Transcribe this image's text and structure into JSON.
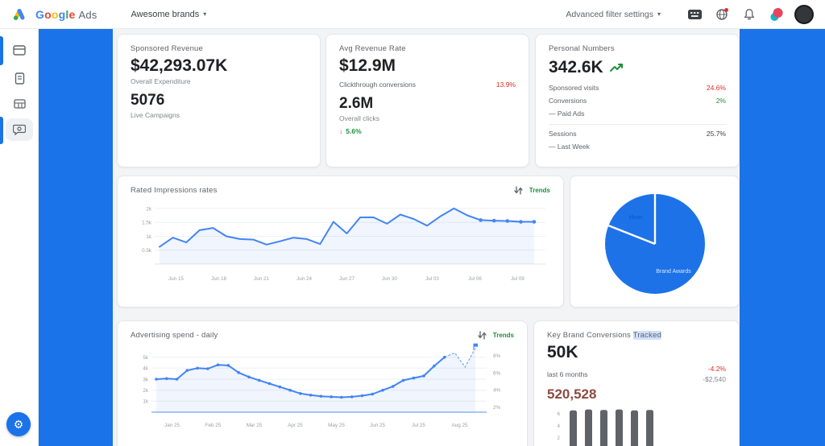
{
  "topbar": {
    "logo": {
      "word": "Google",
      "suffix": "Ads",
      "letter_colors": [
        "#4285f4",
        "#ea4335",
        "#fbbc05",
        "#4285f4",
        "#34a853",
        "#ea4335"
      ]
    },
    "account_label": "Awesome brands",
    "filter_label": "Advanced filter settings",
    "caret": "▾"
  },
  "colors": {
    "accent": "#1a73e8",
    "line": "#4285f4",
    "red": "#d93025",
    "green": "#1e8e3e",
    "maroon": "#8d4a3f",
    "bar_gray": "#5f6368",
    "pie_blue": "#1e72e8"
  },
  "cards": {
    "sponsored": {
      "title": "Sponsored Revenue",
      "value": "$42,293.07K",
      "label1": "Overall Expenditure",
      "value2": "5076",
      "label2": "Live Campaigns"
    },
    "revenue": {
      "title": "Avg Revenue Rate",
      "value": "$12.9M",
      "row1_label": "Clickthrough conversions",
      "row1_delta": "13.9%",
      "value2": "2.6M",
      "label2": "Overall clicks",
      "delta_down": "↓",
      "delta_up": "5.6%"
    },
    "audience": {
      "title": "Personal Numbers",
      "value": "342.6K",
      "rows": [
        {
          "label": "Sponsored visits",
          "value": "24.6%"
        },
        {
          "label": "Conversions",
          "value": "2%"
        },
        {
          "label": "— Paid Ads",
          "value": ""
        }
      ],
      "sessions_label": "Sessions",
      "sessions_value": "25.7%",
      "footnote": "— Last Week"
    },
    "impressions": {
      "trend_label": "Trends"
    },
    "spend": {
      "trend_label": "Trends"
    },
    "conversions": {
      "title_a": "Key Brand Conversions ",
      "title_b": "Tracked",
      "value": "50K",
      "sub": "last 6 months",
      "delta": "-4.2%",
      "delta2": "-$2,540",
      "secondary_value": "520,528"
    }
  },
  "chart_data": [
    {
      "id": "impressions",
      "type": "line",
      "title": "Rated Impressions rates",
      "x": [
        "Jun 15",
        "Jun 18",
        "Jun 21",
        "Jun 24",
        "Jun 27",
        "Jun 30",
        "Jul 03",
        "Jul 06",
        "Jul 09"
      ],
      "values": [
        0.62,
        0.95,
        0.78,
        1.22,
        1.3,
        1.0,
        0.9,
        0.88,
        0.7,
        0.82,
        0.95,
        0.9,
        0.72,
        1.52,
        1.1,
        1.68,
        1.68,
        1.45,
        1.78,
        1.62,
        1.38,
        1.72,
        2.0,
        1.75,
        1.58,
        1.56,
        1.55,
        1.52,
        1.52
      ],
      "ylim": [
        0,
        2.2
      ],
      "yticks": [
        {
          "v": 2,
          "label": "2k"
        },
        {
          "v": 1.5,
          "label": "1.5k"
        },
        {
          "v": 1,
          "label": "1k"
        },
        {
          "v": 0.5,
          "label": "0.5k"
        }
      ],
      "marker_from": 24,
      "legend": "none",
      "grid": true
    },
    {
      "id": "share",
      "type": "pie",
      "title": "",
      "slices": [
        {
          "label": "Brand Awards",
          "value": 81
        },
        {
          "label": "Ideas",
          "value": 19
        }
      ]
    },
    {
      "id": "spend",
      "type": "line",
      "title": "Advertising spend - daily",
      "x": [
        "Jan 25",
        "Feb 25",
        "Mar 25",
        "Apr 25",
        "May 25",
        "Jun 25",
        "Jul 25",
        "Aug 25"
      ],
      "values": [
        3.0,
        3.05,
        3.0,
        3.8,
        4.0,
        3.95,
        4.3,
        4.25,
        3.6,
        3.2,
        2.9,
        2.6,
        2.3,
        2.0,
        1.7,
        1.55,
        1.45,
        1.4,
        1.35,
        1.4,
        1.5,
        1.65,
        2.0,
        2.35,
        2.9,
        3.1,
        3.3,
        4.2,
        5.0,
        5.4,
        4.1,
        5.8
      ],
      "ylim": [
        0,
        6
      ],
      "yticks": [
        {
          "v": 5,
          "label": "5k"
        },
        {
          "v": 4,
          "label": "4k"
        },
        {
          "v": 3,
          "label": "3k"
        },
        {
          "v": 2,
          "label": "2k"
        },
        {
          "v": 1,
          "label": "1k"
        }
      ],
      "right_labels": [
        "8%",
        "6%",
        "4%",
        "2%"
      ],
      "dash_from": 28,
      "dot_all": true,
      "grid": true
    },
    {
      "id": "conversions_bars",
      "type": "bar",
      "title": "",
      "values": [
        6.2,
        6.4,
        6.3,
        6.4,
        6.2,
        6.3
      ],
      "yticks": [
        "6",
        "4",
        "2"
      ]
    }
  ]
}
